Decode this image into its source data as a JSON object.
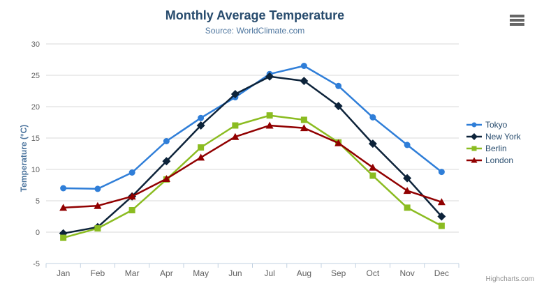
{
  "header": {
    "title": "Monthly Average Temperature",
    "subtitle": "Source: WorldClimate.com"
  },
  "export_menu": {
    "icon": "hamburger-icon"
  },
  "y_axis": {
    "title": "Temperature (°C)",
    "tick_labels": [
      "-5",
      "0",
      "5",
      "10",
      "15",
      "20",
      "25",
      "30"
    ]
  },
  "x_axis": {
    "tick_labels": [
      "Jan",
      "Feb",
      "Mar",
      "Apr",
      "May",
      "Jun",
      "Jul",
      "Aug",
      "Sep",
      "Oct",
      "Nov",
      "Dec"
    ]
  },
  "legend": {
    "position": "right",
    "items": [
      "Tokyo",
      "New York",
      "Berlin",
      "London"
    ]
  },
  "credits": {
    "label": "Highcharts.com"
  },
  "colors": {
    "title": "#274b6d",
    "subtitle": "#4d759e",
    "axis_title": "#4d759e",
    "axis_labels": "#606060",
    "gridline": "#d8d8d8",
    "axis_line": "#c0d0e0",
    "legend_text": "#274b6d",
    "credits_text": "#909090"
  },
  "chart_data": {
    "type": "line",
    "title": "Monthly Average Temperature",
    "subtitle": "Source: WorldClimate.com",
    "xlabel": "",
    "ylabel": "Temperature (°C)",
    "ylim": [
      -5,
      30
    ],
    "y_tick_interval": 5,
    "grid": true,
    "legend_position": "right",
    "categories": [
      "Jan",
      "Feb",
      "Mar",
      "Apr",
      "May",
      "Jun",
      "Jul",
      "Aug",
      "Sep",
      "Oct",
      "Nov",
      "Dec"
    ],
    "series": [
      {
        "name": "Tokyo",
        "color": "#2f7ed8",
        "marker": "circle",
        "values": [
          7.0,
          6.9,
          9.5,
          14.5,
          18.2,
          21.5,
          25.2,
          26.5,
          23.3,
          18.3,
          13.9,
          9.6
        ]
      },
      {
        "name": "New York",
        "color": "#0d233a",
        "marker": "diamond",
        "values": [
          -0.2,
          0.8,
          5.7,
          11.3,
          17.0,
          22.0,
          24.8,
          24.1,
          20.1,
          14.1,
          8.6,
          2.5
        ]
      },
      {
        "name": "Berlin",
        "color": "#8bbc21",
        "marker": "square",
        "values": [
          -0.9,
          0.6,
          3.5,
          8.4,
          13.5,
          17.0,
          18.6,
          17.9,
          14.3,
          9.0,
          3.9,
          1.0
        ]
      },
      {
        "name": "London",
        "color": "#910000",
        "marker": "triangle",
        "values": [
          3.9,
          4.2,
          5.7,
          8.5,
          11.9,
          15.2,
          17.0,
          16.6,
          14.2,
          10.3,
          6.6,
          4.8
        ]
      }
    ]
  }
}
